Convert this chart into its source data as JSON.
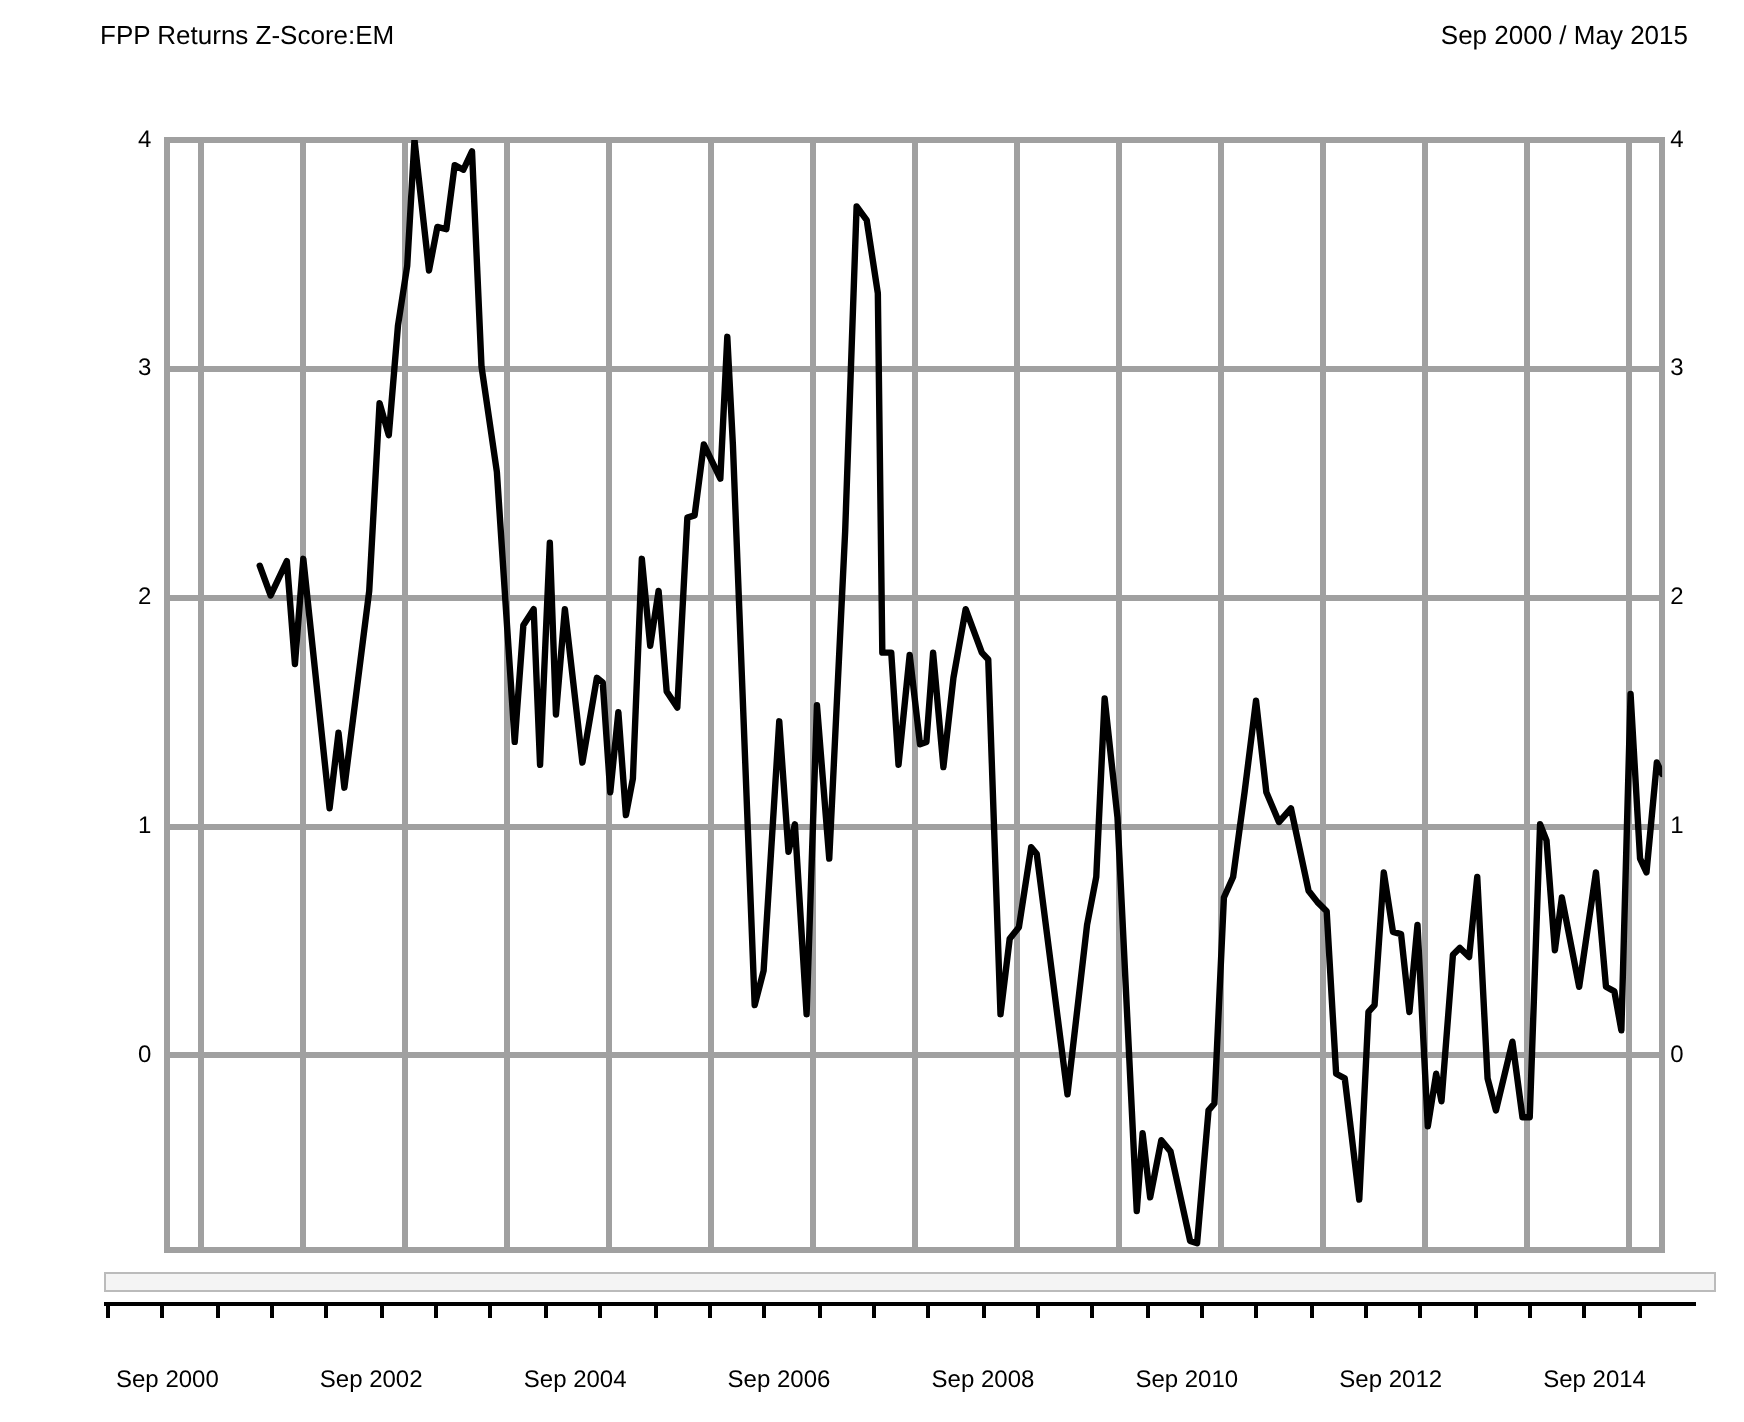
{
  "chart_data": {
    "type": "line",
    "title": "FPP Returns Z-Score:EM",
    "subtitle": "Sep 2000 / May 2015",
    "xlim": [
      "2000-09",
      "2015-05"
    ],
    "xticks": [
      {
        "value": "2000-09",
        "label": "Sep 2000"
      },
      {
        "value": "2001-01",
        "label": null
      },
      {
        "value": "2002-01",
        "label": null
      },
      {
        "value": "2002-09",
        "label": "Sep 2002"
      },
      {
        "value": "2003-01",
        "label": null
      },
      {
        "value": "2004-01",
        "label": null
      },
      {
        "value": "2004-09",
        "label": "Sep 2004"
      },
      {
        "value": "2005-01",
        "label": null
      },
      {
        "value": "2006-01",
        "label": null
      },
      {
        "value": "2006-09",
        "label": "Sep 2006"
      },
      {
        "value": "2007-01",
        "label": null
      },
      {
        "value": "2008-01",
        "label": null
      },
      {
        "value": "2008-09",
        "label": "Sep 2008"
      },
      {
        "value": "2009-01",
        "label": null
      },
      {
        "value": "2010-01",
        "label": null
      },
      {
        "value": "2010-09",
        "label": "Sep 2010"
      },
      {
        "value": "2011-01",
        "label": null
      },
      {
        "value": "2012-01",
        "label": null
      },
      {
        "value": "2012-09",
        "label": "Sep 2012"
      },
      {
        "value": "2013-01",
        "label": null
      },
      {
        "value": "2014-01",
        "label": null
      },
      {
        "value": "2014-09",
        "label": "Sep 2014"
      },
      {
        "value": "2015-01",
        "label": null
      }
    ],
    "ylim": [
      -0.85,
      4
    ],
    "yticks": [
      0,
      1,
      2,
      3,
      4
    ],
    "y2lim": [
      -0.85,
      4
    ],
    "y2ticks": [
      0,
      1,
      2,
      3,
      4
    ],
    "grid": true,
    "legend": false,
    "marker": "none",
    "line_style": "solid",
    "series": [
      {
        "color": "#000000",
        "x": [
          "2001-07-29",
          "2001-09-06",
          "2001-11-03",
          "2001-12-02",
          "2002-01-01",
          "2002-04-05",
          "2002-05-07",
          "2002-05-28",
          "2002-08-25",
          "2002-10-01",
          "2002-11-03",
          "2002-12-06",
          "2003-01-08",
          "2003-02-03",
          "2003-03-27",
          "2003-04-26",
          "2003-05-28",
          "2003-06-27",
          "2003-07-28",
          "2003-08-28",
          "2003-10-01",
          "2003-11-25",
          "2004-01-28",
          "2004-02-28",
          "2004-04-05",
          "2004-04-28",
          "2004-06-02",
          "2004-06-24",
          "2004-07-26",
          "2004-09-27",
          "2004-11-18",
          "2004-12-09",
          "2005-01-05",
          "2005-02-03",
          "2005-03-02",
          "2005-03-27",
          "2005-04-28",
          "2005-05-28",
          "2005-06-27",
          "2005-07-26",
          "2005-09-02",
          "2005-10-08",
          "2005-11-03",
          "2005-12-06",
          "2006-02-03",
          "2006-02-28",
          "2006-03-20",
          "2006-06-06",
          "2006-07-08",
          "2006-09-02",
          "2006-10-05",
          "2006-10-28",
          "2006-12-09",
          "2007-01-15",
          "2007-02-28",
          "2007-04-26",
          "2007-06-06",
          "2007-07-12",
          "2007-08-21",
          "2007-09-06",
          "2007-10-08",
          "2007-11-03",
          "2007-12-13",
          "2008-01-19",
          "2008-02-11",
          "2008-03-06",
          "2008-04-12",
          "2008-05-18",
          "2008-07-01",
          "2008-08-28",
          "2008-09-20",
          "2008-11-03",
          "2008-12-06",
          "2009-01-08",
          "2009-02-21",
          "2009-03-13",
          "2009-07-01",
          "2009-09-09",
          "2009-10-12",
          "2009-11-11",
          "2009-12-27",
          "2010-03-06",
          "2010-03-27",
          "2010-04-23",
          "2010-06-02",
          "2010-07-05",
          "2010-09-13",
          "2010-10-08",
          "2010-11-18",
          "2010-12-09",
          "2011-01-12",
          "2011-02-14",
          "2011-03-27",
          "2011-05-07",
          "2011-06-13",
          "2011-07-28",
          "2011-09-09",
          "2011-11-11",
          "2011-12-13",
          "2012-01-15",
          "2012-02-18",
          "2012-03-20",
          "2012-05-11",
          "2012-06-13",
          "2012-07-05",
          "2012-08-07",
          "2012-09-09",
          "2012-10-08",
          "2012-11-07",
          "2012-12-06",
          "2013-01-12",
          "2013-02-11",
          "2013-03-02",
          "2013-04-12",
          "2013-05-07",
          "2013-06-09",
          "2013-07-08",
          "2013-08-14",
          "2013-09-13",
          "2013-11-11",
          "2013-12-17",
          "2014-01-12",
          "2014-02-18",
          "2014-03-13",
          "2014-04-12",
          "2014-05-07",
          "2014-07-08",
          "2014-09-06",
          "2014-10-12",
          "2014-11-11",
          "2014-12-06",
          "2015-01-08",
          "2015-02-11",
          "2015-03-06",
          "2015-04-12",
          "2015-05"
        ],
        "values": [
          2.14,
          2.01,
          2.16,
          1.71,
          2.17,
          1.08,
          1.41,
          1.17,
          2.03,
          2.85,
          2.71,
          3.19,
          3.45,
          4.0,
          3.43,
          3.62,
          3.61,
          3.89,
          3.87,
          3.95,
          3.01,
          2.55,
          1.37,
          1.88,
          1.95,
          1.27,
          2.24,
          1.49,
          1.95,
          1.28,
          1.65,
          1.63,
          1.15,
          1.5,
          1.05,
          1.21,
          2.17,
          1.79,
          2.03,
          1.59,
          1.52,
          2.35,
          2.36,
          2.67,
          2.52,
          3.14,
          2.67,
          0.22,
          0.37,
          1.46,
          0.89,
          1.01,
          0.18,
          1.53,
          0.86,
          2.29,
          3.71,
          3.65,
          3.33,
          1.76,
          1.76,
          1.27,
          1.75,
          1.36,
          1.37,
          1.76,
          1.26,
          1.65,
          1.95,
          1.76,
          1.73,
          0.18,
          0.51,
          0.56,
          0.91,
          0.88,
          -0.17,
          0.57,
          0.78,
          1.56,
          1.04,
          -0.68,
          -0.34,
          -0.62,
          -0.37,
          -0.42,
          -0.81,
          -0.82,
          -0.24,
          -0.21,
          0.69,
          0.78,
          1.15,
          1.55,
          1.15,
          1.02,
          1.08,
          0.72,
          0.67,
          0.63,
          -0.08,
          -0.1,
          -0.63,
          0.19,
          0.22,
          0.8,
          0.54,
          0.53,
          0.19,
          0.57,
          -0.31,
          -0.08,
          -0.2,
          0.44,
          0.47,
          0.43,
          0.78,
          -0.1,
          -0.24,
          0.06,
          -0.27,
          -0.27,
          1.01,
          0.94,
          0.46,
          0.69,
          0.3,
          0.8,
          0.3,
          0.28,
          0.11,
          1.58,
          0.86,
          0.8,
          1.28,
          1.23
        ]
      }
    ]
  }
}
